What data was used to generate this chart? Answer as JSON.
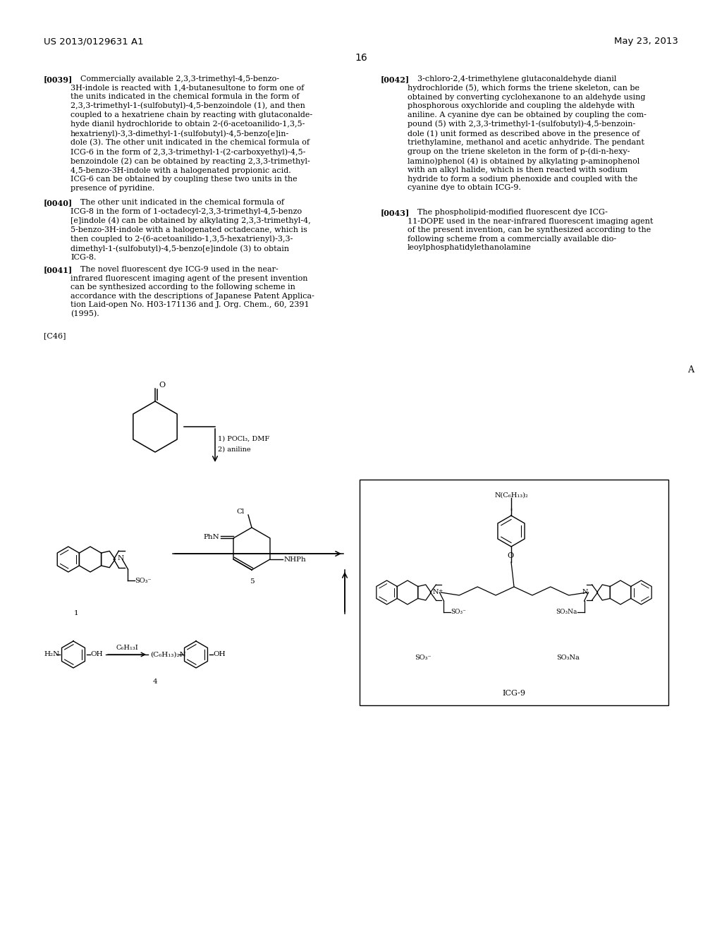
{
  "background_color": "#ffffff",
  "page_header_left": "US 2013/0129631 A1",
  "page_header_right": "May 23, 2013",
  "page_number": "16",
  "p39_tag": "[0039]",
  "p39_body": "    Commercially available 2,3,3-trimethyl-4,5-benzo-\n3H-indole is reacted with 1,4-butanesultone to form one of\nthe units indicated in the chemical formula in the form of\n2,3,3-trimethyl-1-(sulfobutyl)-4,5-benzoindole (1), and then\ncoupled to a hexatriene chain by reacting with glutaconalde-\nhyde dianil hydrochloride to obtain 2-(6-acetoanilido-1,3,5-\nhexatrienyl)-3,3-dimethyl-1-(sulfobutyl)-4,5-benzo[e]in-\ndole (3). The other unit indicated in the chemical formula of\nICG-6 in the form of 2,3,3-trimethyl-1-(2-carboxyethyl)-4,5-\nbenzoindole (2) can be obtained by reacting 2,3,3-trimethyl-\n4,5-benzo-3H-indole with a halogenated propionic acid.\nICG-6 can be obtained by coupling these two units in the\npresence of pyridine.",
  "p40_tag": "[0040]",
  "p40_body": "    The other unit indicated in the chemical formula of\nICG-8 in the form of 1-octadecyl-2,3,3-trimethyl-4,5-benzo\n[e]indole (4) can be obtained by alkylating 2,3,3-trimethyl-4,\n5-benzo-3H-indole with a halogenated octadecane, which is\nthen coupled to 2-(6-acetoanilido-1,3,5-hexatrienyl)-3,3-\ndimethyl-1-(sulfobutyl)-4,5-benzo[e]indole (3) to obtain\nICG-8.",
  "p41_tag": "[0041]",
  "p41_body": "    The novel fluorescent dye ICG-9 used in the near-\ninfrared fluorescent imaging agent of the present invention\ncan be synthesized according to the following scheme in\naccordance with the descriptions of Japanese Patent Applica-\ntion Laid-open No. H03-171136 and J. Org. Chem., 60, 2391\n(1995).",
  "p42_tag": "[0042]",
  "p42_body": "    3-chloro-2,4-trimethylene glutaconaldehyde dianil\nhydrochloride (5), which forms the triene skeleton, can be\nobtained by converting cyclohexanone to an aldehyde using\nphosphorous oxychloride and coupling the aldehyde with\naniline. A cyanine dye can be obtained by coupling the com-\npound (5) with 2,3,3-trimethyl-1-(sulfobutyl)-4,5-benzoin-\ndole (1) unit formed as described above in the presence of\ntriethylamine, methanol and acetic anhydride. The pendant\ngroup on the triene skeleton in the form of p-(di-n-hexy-\nlamino)phenol (4) is obtained by alkylating p-aminophenol\nwith an alkyl halide, which is then reacted with sodium\nhydride to form a sodium phenoxide and coupled with the\ncyanine dye to obtain ICG-9.",
  "p43_tag": "[0043]",
  "p43_body": "    The phospholipid-modified fluorescent dye ICG-\n11-DOPE used in the near-infrared fluorescent imaging agent\nof the present invention, can be synthesized according to the\nfollowing scheme from a commercially available dio-\nleoylphosphatidylethanolamine",
  "c46": "[C46]",
  "label_A": "A"
}
